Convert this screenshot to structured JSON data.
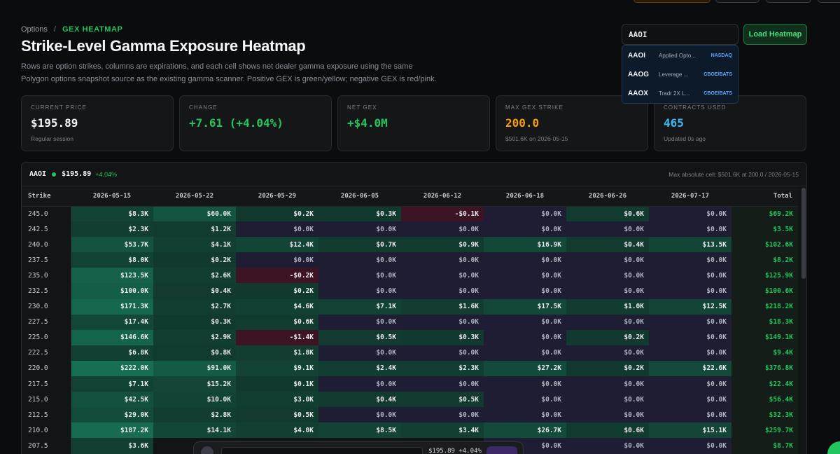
{
  "breadcrumb": {
    "parent": "Options",
    "separator": "/",
    "current": "GEX HEATMAP"
  },
  "title": "Strike-Level Gamma Exposure Heatmap",
  "description": "Rows are option strikes, columns are expirations, and each cell shows net dealer gamma exposure using the same Polygon options snapshot source as the existing gamma scanner. Positive GEX is green/yellow; negative GEX is red/pink.",
  "search": {
    "value": "AAOI",
    "load_label": "Load Heatmap"
  },
  "suggestions": [
    {
      "symbol": "AAOI",
      "name": "Applied Opto...",
      "exchange": "NASDAQ"
    },
    {
      "symbol": "AAOG",
      "name": "Leverage ...",
      "exchange": "CBOE/BATS"
    },
    {
      "symbol": "AAOX",
      "name": "Tradr 2X L...",
      "exchange": "CBOE/BATS"
    }
  ],
  "stats": {
    "current_price": {
      "label": "CURRENT PRICE",
      "value": "$195.89",
      "sub": "Regular session"
    },
    "change": {
      "label": "CHANGE",
      "value": "+7.61 (+4.04%)"
    },
    "net_gex": {
      "label": "NET GEX",
      "value": "+$4.0M"
    },
    "max_gex_strike": {
      "label": "MAX GEX STRIKE",
      "value": "200.0",
      "sub": "$501.6K on 2026-05-15"
    },
    "contracts": {
      "label": "CONTRACTS USED",
      "value": "465",
      "sub": "Updated 0s ago"
    }
  },
  "panel": {
    "symbol": "AAOI",
    "price": "$195.89",
    "change": "+4.04%",
    "max_cell": "Max absolute cell: $501.6K at 200.0 / 2026-05-15"
  },
  "table": {
    "strike_header": "Strike",
    "total_header": "Total",
    "expirations": [
      "2026-05-15",
      "2026-05-22",
      "2026-05-29",
      "2026-06-05",
      "2026-06-12",
      "2026-06-18",
      "2026-06-26",
      "2026-07-17"
    ],
    "rows": [
      {
        "strike": "245.0",
        "cells": [
          "$8.3K",
          "$60.0K",
          "$0.2K",
          "$0.3K",
          "-$0.1K",
          "$0.0K",
          "$0.6K",
          "$0.0K"
        ],
        "total": "$69.2K"
      },
      {
        "strike": "242.5",
        "cells": [
          "$2.3K",
          "$1.2K",
          "$0.0K",
          "$0.0K",
          "$0.0K",
          "$0.0K",
          "$0.0K",
          "$0.0K"
        ],
        "total": "$3.5K"
      },
      {
        "strike": "240.0",
        "cells": [
          "$53.7K",
          "$4.1K",
          "$12.4K",
          "$0.7K",
          "$0.9K",
          "$16.9K",
          "$0.4K",
          "$13.5K"
        ],
        "total": "$102.6K"
      },
      {
        "strike": "237.5",
        "cells": [
          "$8.0K",
          "$0.2K",
          "$0.0K",
          "$0.0K",
          "$0.0K",
          "$0.0K",
          "$0.0K",
          "$0.0K"
        ],
        "total": "$8.2K"
      },
      {
        "strike": "235.0",
        "cells": [
          "$123.5K",
          "$2.6K",
          "-$0.2K",
          "$0.0K",
          "$0.0K",
          "$0.0K",
          "$0.0K",
          "$0.0K"
        ],
        "total": "$125.9K"
      },
      {
        "strike": "232.5",
        "cells": [
          "$100.0K",
          "$0.4K",
          "$0.2K",
          "$0.0K",
          "$0.0K",
          "$0.0K",
          "$0.0K",
          "$0.0K"
        ],
        "total": "$100.6K"
      },
      {
        "strike": "230.0",
        "cells": [
          "$171.3K",
          "$2.7K",
          "$4.6K",
          "$7.1K",
          "$1.6K",
          "$17.5K",
          "$1.0K",
          "$12.5K"
        ],
        "total": "$218.2K"
      },
      {
        "strike": "227.5",
        "cells": [
          "$17.4K",
          "$0.3K",
          "$0.6K",
          "$0.0K",
          "$0.0K",
          "$0.0K",
          "$0.0K",
          "$0.0K"
        ],
        "total": "$18.3K"
      },
      {
        "strike": "225.0",
        "cells": [
          "$146.6K",
          "$2.9K",
          "-$1.4K",
          "$0.5K",
          "$0.3K",
          "$0.0K",
          "$0.2K",
          "$0.0K"
        ],
        "total": "$149.1K"
      },
      {
        "strike": "222.5",
        "cells": [
          "$6.8K",
          "$0.8K",
          "$1.8K",
          "$0.0K",
          "$0.0K",
          "$0.0K",
          "$0.0K",
          "$0.0K"
        ],
        "total": "$9.4K"
      },
      {
        "strike": "220.0",
        "cells": [
          "$222.0K",
          "$91.0K",
          "$9.1K",
          "$2.4K",
          "$2.3K",
          "$27.2K",
          "$0.2K",
          "$22.6K"
        ],
        "total": "$376.8K"
      },
      {
        "strike": "217.5",
        "cells": [
          "$7.1K",
          "$15.2K",
          "$0.1K",
          "$0.0K",
          "$0.0K",
          "$0.0K",
          "$0.0K",
          "$0.0K"
        ],
        "total": "$22.4K"
      },
      {
        "strike": "215.0",
        "cells": [
          "$42.5K",
          "$10.0K",
          "$3.0K",
          "$0.4K",
          "$0.5K",
          "$0.0K",
          "$0.0K",
          "$0.0K"
        ],
        "total": "$56.4K"
      },
      {
        "strike": "212.5",
        "cells": [
          "$29.0K",
          "$2.8K",
          "$0.5K",
          "$0.0K",
          "$0.0K",
          "$0.0K",
          "$0.0K",
          "$0.0K"
        ],
        "total": "$32.3K"
      },
      {
        "strike": "210.0",
        "cells": [
          "$187.2K",
          "$14.1K",
          "$4.0K",
          "$8.5K",
          "$3.4K",
          "$26.7K",
          "$0.6K",
          "$15.1K"
        ],
        "total": "$259.7K"
      },
      {
        "strike": "207.5",
        "cells": [
          "$3.6K",
          "",
          "",
          "",
          "",
          "$0.0K",
          "$0.0K",
          "$0.0K"
        ],
        "total": "$8.7K"
      }
    ]
  },
  "bottom_bar": {
    "price": "$195.89 +4.04%"
  }
}
